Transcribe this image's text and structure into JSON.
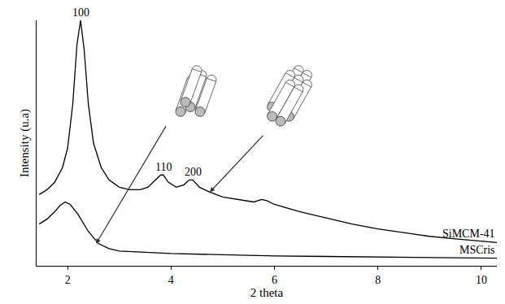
{
  "chart_data": {
    "type": "line",
    "x_label": "2 theta",
    "y_label": "Intensity (u.a)",
    "xlim": [
      1.4,
      10.3
    ],
    "xticks": [
      2,
      4,
      6,
      8,
      10
    ],
    "ylim": [
      0,
      100
    ],
    "tick_labels": "x",
    "grid": false,
    "series": [
      {
        "name": "SiMCM-41",
        "color": "#000000",
        "x": [
          1.45,
          1.6,
          1.75,
          1.9,
          2.0,
          2.1,
          2.18,
          2.25,
          2.32,
          2.4,
          2.5,
          2.65,
          2.8,
          3.0,
          3.2,
          3.4,
          3.55,
          3.7,
          3.8,
          3.85,
          3.95,
          4.1,
          4.25,
          4.35,
          4.42,
          4.55,
          4.75,
          5.0,
          5.3,
          5.6,
          5.75,
          5.85,
          6.0,
          6.5,
          7.0,
          7.5,
          8.0,
          8.5,
          9.0,
          9.5,
          10.0,
          10.3
        ],
        "values": [
          29,
          31,
          34,
          40,
          48,
          66,
          90,
          100,
          88,
          66,
          50,
          40,
          35,
          32,
          31,
          31,
          32,
          35,
          37,
          37,
          34,
          32,
          33,
          35,
          35,
          32,
          30,
          28,
          27,
          26,
          27,
          26.5,
          25,
          22,
          19.5,
          17,
          15,
          13.5,
          12,
          11,
          10,
          9.5
        ]
      },
      {
        "name": "MSCris",
        "color": "#000000",
        "x": [
          1.45,
          1.6,
          1.75,
          1.85,
          1.95,
          2.05,
          2.2,
          2.4,
          2.6,
          2.8,
          3.0,
          3.5,
          4.0,
          5.0,
          6.0,
          7.0,
          8.0,
          9.0,
          10.0,
          10.3
        ],
        "values": [
          17,
          19,
          22,
          24.5,
          26,
          25,
          21,
          14,
          9,
          7,
          6,
          5.5,
          5,
          4.5,
          4,
          3.8,
          3.6,
          3.4,
          3.2,
          3.1
        ]
      }
    ],
    "annotations": [
      {
        "text": "100",
        "x": 2.25,
        "y": 100
      },
      {
        "text": "110",
        "x": 3.85,
        "y": 37
      },
      {
        "text": "200",
        "x": 4.42,
        "y": 35
      }
    ]
  }
}
